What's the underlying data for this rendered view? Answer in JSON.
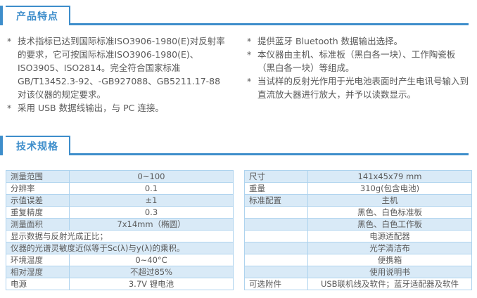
{
  "colors": {
    "accent_blue": "#3e8ecb",
    "row_alt_blue": "#d9eaf7",
    "table_inner_border": "#aed3ee",
    "table_outer_border": "#b6c4ce",
    "body_text": "#595959"
  },
  "features": {
    "title": "产品特点",
    "bullet_marker": "*",
    "left": [
      "技术指标已达到国际标准ISO3906-1980(E)对反射率的要求，它可按国际标准ISO3906-1980(E)、ISO3905、ISO2814。完全符合国家标准GB/T13452.3-92、-GB927088、GB5211.17-88对该仪器的规定要求。",
      "采用 USB 数据线输出，与 PC 连接。"
    ],
    "right": [
      "提供蓝牙 Bluetooth 数据输出选择。",
      "本仪器由主机、标准板（黑白各一块）、工作陶瓷板（黑白各一块）等组成。",
      "当试样的反射光作用于光电池表面时产生电讯号输入到直流放大器进行放大，并予以读数显示。"
    ]
  },
  "specs": {
    "title": "技术规格",
    "left_table": {
      "rows": [
        {
          "label": "测量范围",
          "value": "0~100"
        },
        {
          "label": "分辨率",
          "value": "0.1"
        },
        {
          "label": "示值误差",
          "value": "±1"
        },
        {
          "label": "重复精度",
          "value": "0.3"
        },
        {
          "label": "测量面积",
          "value": "7x14mm（椭圆）"
        },
        {
          "text": "显示数据与反射光成正比；"
        },
        {
          "text": "仪器的光谱灵敏度近似等于Sc(λ)与y(λ)的乘积。"
        },
        {
          "label": "环境温度",
          "value": "0~40°C"
        },
        {
          "label": "相对湿度",
          "value": "不超过85%"
        },
        {
          "label": "电源",
          "value": "3.7V 锂电池"
        }
      ]
    },
    "right_table": {
      "rows": [
        {
          "label": "尺寸",
          "value": "141x45x79 mm"
        },
        {
          "label": "重量",
          "value": "310g(包含电池)"
        },
        {
          "label": "标准配置",
          "value": "主机"
        },
        {
          "label": "",
          "value": "黑色、白色标准板"
        },
        {
          "label": "",
          "value": "黑色、白色工作板"
        },
        {
          "label": "",
          "value": "电源适配器"
        },
        {
          "label": "",
          "value": "光学清洁布"
        },
        {
          "label": "",
          "value": "便携箱"
        },
        {
          "label": "",
          "value": "使用说明书"
        },
        {
          "label": "可选附件",
          "value": "USB联机线及软件；蓝牙适配器及软件"
        }
      ]
    }
  }
}
